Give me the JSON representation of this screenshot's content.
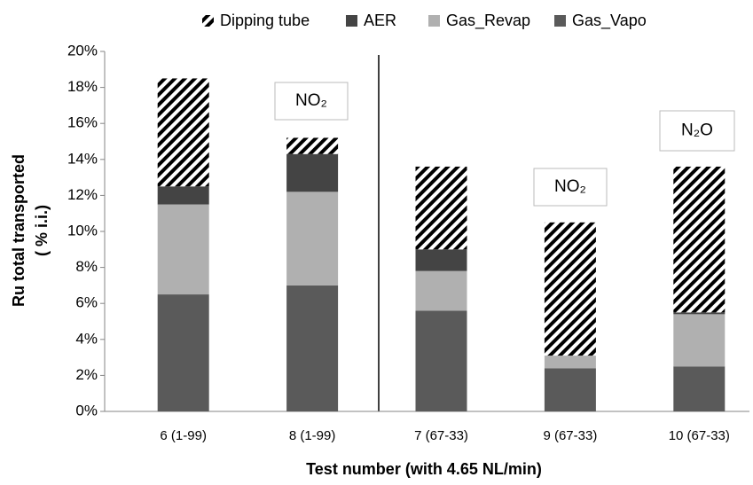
{
  "chart_data": {
    "type": "stacked_bar",
    "y_label": [
      "Ru total  transported",
      "( % i.i.)"
    ],
    "x_label": "Test number (with 4.65 NL/min)",
    "categories": [
      "6 (1-99)",
      "8 (1-99)",
      "7 (67-33)",
      "9 (67-33)",
      "10 (67-33)"
    ],
    "series": [
      {
        "name": "Gas_Vapo",
        "color": "#5a5a5a",
        "values": [
          6.5,
          7.0,
          5.6,
          2.4,
          2.5
        ]
      },
      {
        "name": "Gas_Revap",
        "color": "#b0b0b0",
        "values": [
          5.0,
          5.2,
          2.2,
          0.7,
          2.9
        ]
      },
      {
        "name": "AER",
        "color": "#444444",
        "values": [
          1.0,
          2.1,
          1.2,
          0,
          0.1
        ]
      },
      {
        "name": "Dipping tube",
        "color": "#000000",
        "hatch": true,
        "values": [
          6.0,
          0.9,
          4.6,
          7.4,
          8.1
        ]
      }
    ],
    "legend_order": [
      3,
      2,
      1,
      0
    ],
    "ylim": [
      0,
      20
    ],
    "yticks": [
      {
        "value": 0,
        "label": "0%"
      },
      {
        "value": 2,
        "label": "2%"
      },
      {
        "value": 4,
        "label": "4%"
      },
      {
        "value": 6,
        "label": "6%"
      },
      {
        "value": 8,
        "label": "8%"
      },
      {
        "value": 10,
        "label": "10%"
      },
      {
        "value": 12,
        "label": "12%"
      },
      {
        "value": 14,
        "label": "14%"
      },
      {
        "value": 16,
        "label": "16%"
      },
      {
        "value": 18,
        "label": "18%"
      },
      {
        "value": 20,
        "label": "20%"
      }
    ],
    "annotations": [
      "NO₂",
      "NO₂",
      "N₂O"
    ]
  }
}
